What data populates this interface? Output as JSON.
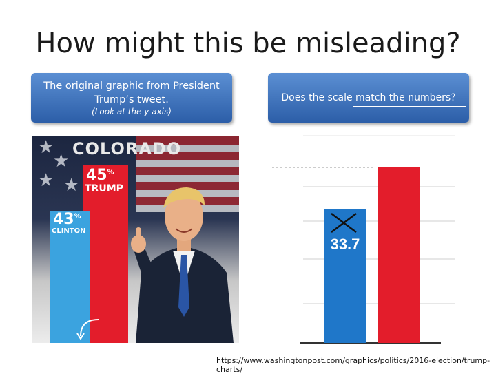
{
  "slide": {
    "title": "How might this be misleading?",
    "callout_left": {
      "line1": "The original graphic from President",
      "line1b": "Trump’s tweet.",
      "line2": "(Look at the y-axis)"
    },
    "callout_right": {
      "line1": "Does the scale match the numbers?"
    },
    "source_url": "https://www.washingtonpost.com/graphics/politics/2016-election/trump-charts/"
  },
  "original_graphic": {
    "state": "COLORADO",
    "trump": {
      "pct": "45",
      "name": "TRUMP",
      "color": "#e31d2b"
    },
    "clinton": {
      "pct": "43",
      "name": "CLINTON",
      "color": "#3ba3df"
    },
    "pct_symbol": "%"
  },
  "corrected_chart": {
    "blue_label": "33.7",
    "colors": {
      "blue": "#1f77c9",
      "red": "#e31d2b",
      "grid": "#cfcfcf",
      "dashed": "#999999"
    }
  }
}
